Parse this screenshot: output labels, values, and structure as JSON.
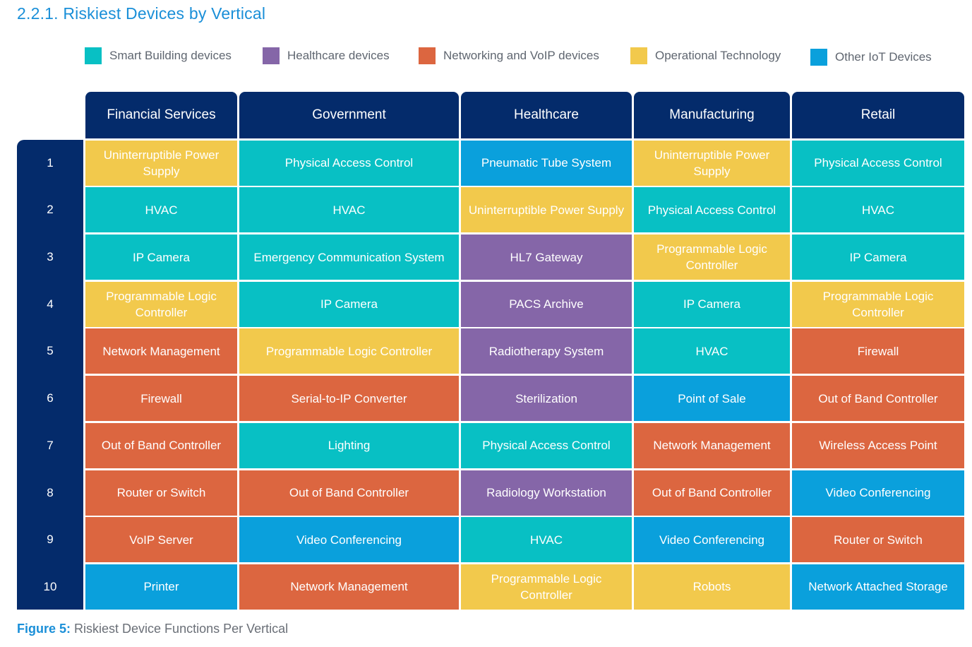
{
  "section_title": "2.2.1. Riskiest Devices by Vertical",
  "legend": [
    {
      "key": "smart",
      "label": "Smart Building devices",
      "color": "#08c0c4"
    },
    {
      "key": "health",
      "label": "Healthcare devices",
      "color": "#8566a8"
    },
    {
      "key": "net",
      "label": "Networking and VoIP devices",
      "color": "#dc6640"
    },
    {
      "key": "ot",
      "label": "Operational Technology",
      "color": "#f2c94c"
    },
    {
      "key": "iot",
      "label": "Other IoT Devices",
      "color": "#0aa0dc"
    }
  ],
  "columns": [
    "Financial Services",
    "Government",
    "Healthcare",
    "Manufacturing",
    "Retail"
  ],
  "rows": [
    {
      "rank": "1",
      "cells": [
        {
          "text": "Uninterruptible Power Supply",
          "cat": "ot"
        },
        {
          "text": "Physical Access Control",
          "cat": "smart"
        },
        {
          "text": "Pneumatic Tube System",
          "cat": "iot"
        },
        {
          "text": "Uninterruptible Power Supply",
          "cat": "ot"
        },
        {
          "text": "Physical Access Control",
          "cat": "smart"
        }
      ]
    },
    {
      "rank": "2",
      "cells": [
        {
          "text": "HVAC",
          "cat": "smart"
        },
        {
          "text": "HVAC",
          "cat": "smart"
        },
        {
          "text": "Uninterruptible Power Supply",
          "cat": "ot"
        },
        {
          "text": "Physical Access Control",
          "cat": "smart"
        },
        {
          "text": "HVAC",
          "cat": "smart"
        }
      ]
    },
    {
      "rank": "3",
      "cells": [
        {
          "text": "IP Camera",
          "cat": "smart"
        },
        {
          "text": "Emergency Communication System",
          "cat": "smart"
        },
        {
          "text": "HL7 Gateway",
          "cat": "health"
        },
        {
          "text": "Programmable Logic Controller",
          "cat": "ot"
        },
        {
          "text": "IP Camera",
          "cat": "smart"
        }
      ]
    },
    {
      "rank": "4",
      "cells": [
        {
          "text": "Programmable Logic Controller",
          "cat": "ot"
        },
        {
          "text": "IP Camera",
          "cat": "smart"
        },
        {
          "text": "PACS Archive",
          "cat": "health"
        },
        {
          "text": "IP Camera",
          "cat": "smart"
        },
        {
          "text": "Programmable Logic Controller",
          "cat": "ot"
        }
      ]
    },
    {
      "rank": "5",
      "cells": [
        {
          "text": "Network Management",
          "cat": "net"
        },
        {
          "text": "Programmable Logic Controller",
          "cat": "ot"
        },
        {
          "text": "Radiotherapy System",
          "cat": "health"
        },
        {
          "text": "HVAC",
          "cat": "smart"
        },
        {
          "text": "Firewall",
          "cat": "net"
        }
      ]
    },
    {
      "rank": "6",
      "cells": [
        {
          "text": "Firewall",
          "cat": "net"
        },
        {
          "text": "Serial-to-IP Converter",
          "cat": "net"
        },
        {
          "text": "Sterilization",
          "cat": "health"
        },
        {
          "text": "Point of Sale",
          "cat": "iot"
        },
        {
          "text": "Out of Band Controller",
          "cat": "net"
        }
      ]
    },
    {
      "rank": "7",
      "cells": [
        {
          "text": "Out of Band Controller",
          "cat": "net"
        },
        {
          "text": "Lighting",
          "cat": "smart"
        },
        {
          "text": "Physical Access Control",
          "cat": "smart"
        },
        {
          "text": "Network Management",
          "cat": "net"
        },
        {
          "text": "Wireless Access Point",
          "cat": "net"
        }
      ]
    },
    {
      "rank": "8",
      "cells": [
        {
          "text": "Router or Switch",
          "cat": "net"
        },
        {
          "text": "Out of Band Controller",
          "cat": "net"
        },
        {
          "text": "Radiology Workstation",
          "cat": "health"
        },
        {
          "text": "Out of Band Controller",
          "cat": "net"
        },
        {
          "text": "Video Conferencing",
          "cat": "iot"
        }
      ]
    },
    {
      "rank": "9",
      "cells": [
        {
          "text": "VoIP Server",
          "cat": "net"
        },
        {
          "text": "Video Conferencing",
          "cat": "iot"
        },
        {
          "text": "HVAC",
          "cat": "smart"
        },
        {
          "text": "Video Conferencing",
          "cat": "iot"
        },
        {
          "text": "Router or Switch",
          "cat": "net"
        }
      ]
    },
    {
      "rank": "10",
      "cells": [
        {
          "text": "Printer",
          "cat": "iot"
        },
        {
          "text": "Network Management",
          "cat": "net"
        },
        {
          "text": "Programmable Logic Controller",
          "cat": "ot"
        },
        {
          "text": "Robots",
          "cat": "ot"
        },
        {
          "text": "Network Attached Storage",
          "cat": "iot"
        }
      ]
    }
  ],
  "caption": {
    "lead": "Figure 5:",
    "text": "Riskiest Device Functions Per Vertical"
  }
}
